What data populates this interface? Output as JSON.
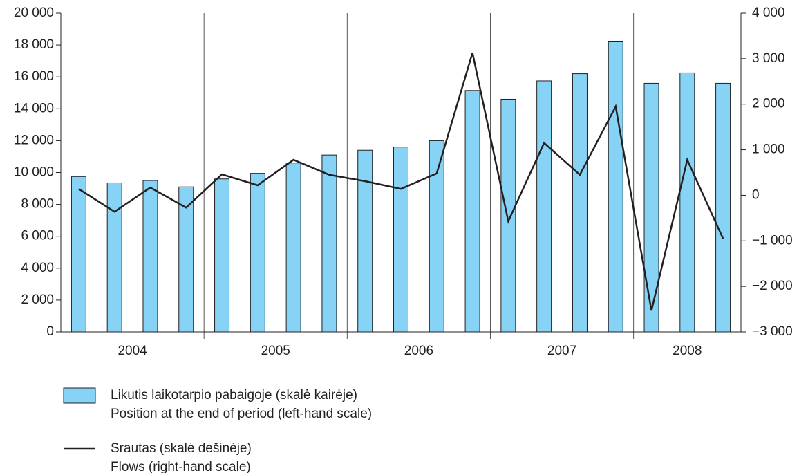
{
  "chart_data": {
    "type": "bar-line",
    "categories": [
      null,
      null,
      null,
      null,
      null,
      null,
      null,
      null,
      null,
      null,
      null,
      null,
      null,
      null,
      null,
      null,
      null,
      null,
      null
    ],
    "x_groups": [
      "2004",
      "2005",
      "2006",
      "2007",
      "2008"
    ],
    "series": [
      {
        "name": "Likutis laikotarpio pabaigoje (skalė kairėje)",
        "subname": "Position at the end of period (left-hand scale)",
        "type": "bar",
        "color": "#87d3f5",
        "axis": "y",
        "values": [
          9750,
          9350,
          9500,
          9100,
          9600,
          9950,
          10600,
          11100,
          11400,
          11600,
          12000,
          15150,
          14600,
          15750,
          16200,
          18200,
          15600,
          16250,
          15600
        ]
      },
      {
        "name": "Srautas (skalė dešinėje)",
        "subname": "Flows (right-hand scale)",
        "type": "line",
        "color": "#231f20",
        "axis": "y2",
        "values": [
          140,
          -360,
          170,
          -270,
          460,
          220,
          780,
          450,
          310,
          140,
          480,
          3130,
          -570,
          1150,
          450,
          1950,
          -2530,
          780,
          -950
        ]
      }
    ],
    "ylim": [
      0,
      20000
    ],
    "yticks": [
      0,
      {
        "value": 2000,
        "label": "2 000"
      },
      {
        "value": 4000,
        "label": "4 000"
      },
      {
        "value": 6000,
        "label": "6 000"
      },
      {
        "value": 8000,
        "label": "8 000"
      },
      {
        "value": 10000,
        "label": "10 000"
      },
      {
        "value": 12000,
        "label": "12 000"
      },
      {
        "value": 14000,
        "label": "14 000"
      },
      {
        "value": 16000,
        "label": "16 000"
      },
      {
        "value": 18000,
        "label": "18 000"
      },
      {
        "value": 20000,
        "label": "20 000"
      }
    ],
    "y2lim": [
      -3000,
      4000
    ],
    "y2ticks": [
      {
        "value": -3000,
        "label": "−3 000"
      },
      {
        "value": -2000,
        "label": "−2 000"
      },
      {
        "value": -1000,
        "label": "−1 000"
      },
      0,
      {
        "value": 1000,
        "label": "1 000"
      },
      {
        "value": 2000,
        "label": "2 000"
      },
      {
        "value": 3000,
        "label": "3 000"
      },
      {
        "value": 4000,
        "label": "4 000"
      }
    ]
  }
}
